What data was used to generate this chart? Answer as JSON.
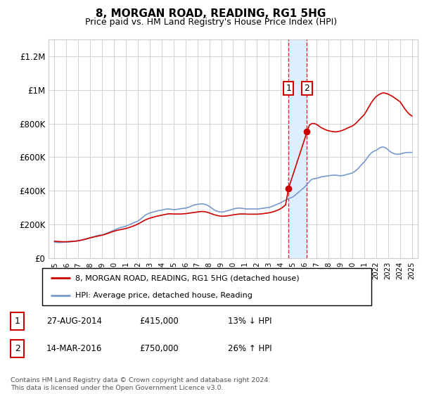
{
  "title": "8, MORGAN ROAD, READING, RG1 5HG",
  "subtitle": "Price paid vs. HM Land Registry's House Price Index (HPI)",
  "legend_line1": "8, MORGAN ROAD, READING, RG1 5HG (detached house)",
  "legend_line2": "HPI: Average price, detached house, Reading",
  "footer": "Contains HM Land Registry data © Crown copyright and database right 2024.\nThis data is licensed under the Open Government Licence v3.0.",
  "purchase1_date": "27-AUG-2014",
  "purchase1_price": 415000,
  "purchase1_label": "13% ↓ HPI",
  "purchase2_date": "14-MAR-2016",
  "purchase2_price": 750000,
  "purchase2_label": "26% ↑ HPI",
  "purchase1_year": 2014.65,
  "purchase2_year": 2016.2,
  "red_color": "#cc0000",
  "blue_color": "#7799cc",
  "shade_color": "#ddeeff",
  "grid_color": "#cccccc",
  "ylim": [
    0,
    1300000
  ],
  "yticks": [
    0,
    200000,
    400000,
    600000,
    800000,
    1000000,
    1200000
  ],
  "ytick_labels": [
    "£0",
    "£200K",
    "£400K",
    "£600K",
    "£800K",
    "£1M",
    "£1.2M"
  ],
  "hpi_data": [
    [
      1995.0,
      95000
    ],
    [
      1995.1,
      94000
    ],
    [
      1995.2,
      93500
    ],
    [
      1995.3,
      93000
    ],
    [
      1995.4,
      92500
    ],
    [
      1995.5,
      92800
    ],
    [
      1995.6,
      93000
    ],
    [
      1995.7,
      93500
    ],
    [
      1995.8,
      94000
    ],
    [
      1995.9,
      94500
    ],
    [
      1996.0,
      94800
    ],
    [
      1996.1,
      95000
    ],
    [
      1996.2,
      95500
    ],
    [
      1996.3,
      96000
    ],
    [
      1996.4,
      97000
    ],
    [
      1996.5,
      98000
    ],
    [
      1996.6,
      99000
    ],
    [
      1996.7,
      100000
    ],
    [
      1996.8,
      101000
    ],
    [
      1996.9,
      102000
    ],
    [
      1997.0,
      103000
    ],
    [
      1997.1,
      104000
    ],
    [
      1997.2,
      105000
    ],
    [
      1997.3,
      107000
    ],
    [
      1997.4,
      109000
    ],
    [
      1997.5,
      111000
    ],
    [
      1997.6,
      113000
    ],
    [
      1997.7,
      115000
    ],
    [
      1997.8,
      117000
    ],
    [
      1997.9,
      119000
    ],
    [
      1998.0,
      121000
    ],
    [
      1998.1,
      123000
    ],
    [
      1998.2,
      125000
    ],
    [
      1998.3,
      127000
    ],
    [
      1998.4,
      129000
    ],
    [
      1998.5,
      131000
    ],
    [
      1998.6,
      133000
    ],
    [
      1998.7,
      135000
    ],
    [
      1998.8,
      136000
    ],
    [
      1998.9,
      137000
    ],
    [
      1999.0,
      138000
    ],
    [
      1999.1,
      140000
    ],
    [
      1999.2,
      142000
    ],
    [
      1999.3,
      145000
    ],
    [
      1999.4,
      148000
    ],
    [
      1999.5,
      151000
    ],
    [
      1999.6,
      154000
    ],
    [
      1999.7,
      157000
    ],
    [
      1999.8,
      160000
    ],
    [
      1999.9,
      163000
    ],
    [
      2000.0,
      166000
    ],
    [
      2000.1,
      169000
    ],
    [
      2000.2,
      172000
    ],
    [
      2000.3,
      175000
    ],
    [
      2000.4,
      178000
    ],
    [
      2000.5,
      180000
    ],
    [
      2000.6,
      182000
    ],
    [
      2000.7,
      184000
    ],
    [
      2000.8,
      186000
    ],
    [
      2000.9,
      188000
    ],
    [
      2001.0,
      190000
    ],
    [
      2001.1,
      193000
    ],
    [
      2001.2,
      196000
    ],
    [
      2001.3,
      199000
    ],
    [
      2001.4,
      202000
    ],
    [
      2001.5,
      205000
    ],
    [
      2001.6,
      208000
    ],
    [
      2001.7,
      211000
    ],
    [
      2001.8,
      214000
    ],
    [
      2001.9,
      217000
    ],
    [
      2002.0,
      220000
    ],
    [
      2002.1,
      225000
    ],
    [
      2002.2,
      230000
    ],
    [
      2002.3,
      236000
    ],
    [
      2002.4,
      242000
    ],
    [
      2002.5,
      248000
    ],
    [
      2002.6,
      254000
    ],
    [
      2002.7,
      258000
    ],
    [
      2002.8,
      262000
    ],
    [
      2002.9,
      265000
    ],
    [
      2003.0,
      268000
    ],
    [
      2003.1,
      270000
    ],
    [
      2003.2,
      272000
    ],
    [
      2003.3,
      274000
    ],
    [
      2003.4,
      276000
    ],
    [
      2003.5,
      278000
    ],
    [
      2003.6,
      280000
    ],
    [
      2003.7,
      282000
    ],
    [
      2003.8,
      283000
    ],
    [
      2003.9,
      284000
    ],
    [
      2004.0,
      285000
    ],
    [
      2004.1,
      287000
    ],
    [
      2004.2,
      289000
    ],
    [
      2004.3,
      290000
    ],
    [
      2004.4,
      291000
    ],
    [
      2004.5,
      292000
    ],
    [
      2004.6,
      292000
    ],
    [
      2004.7,
      291000
    ],
    [
      2004.8,
      290000
    ],
    [
      2004.9,
      289000
    ],
    [
      2005.0,
      288000
    ],
    [
      2005.1,
      288000
    ],
    [
      2005.2,
      289000
    ],
    [
      2005.3,
      290000
    ],
    [
      2005.4,
      291000
    ],
    [
      2005.5,
      292000
    ],
    [
      2005.6,
      293000
    ],
    [
      2005.7,
      294000
    ],
    [
      2005.8,
      295000
    ],
    [
      2005.9,
      296000
    ],
    [
      2006.0,
      297000
    ],
    [
      2006.1,
      299000
    ],
    [
      2006.2,
      301000
    ],
    [
      2006.3,
      303000
    ],
    [
      2006.4,
      306000
    ],
    [
      2006.5,
      309000
    ],
    [
      2006.6,
      312000
    ],
    [
      2006.7,
      315000
    ],
    [
      2006.8,
      317000
    ],
    [
      2006.9,
      318000
    ],
    [
      2007.0,
      319000
    ],
    [
      2007.1,
      320000
    ],
    [
      2007.2,
      321000
    ],
    [
      2007.3,
      322000
    ],
    [
      2007.4,
      322000
    ],
    [
      2007.5,
      321000
    ],
    [
      2007.6,
      320000
    ],
    [
      2007.7,
      318000
    ],
    [
      2007.8,
      315000
    ],
    [
      2007.9,
      311000
    ],
    [
      2008.0,
      307000
    ],
    [
      2008.1,
      302000
    ],
    [
      2008.2,
      297000
    ],
    [
      2008.3,
      292000
    ],
    [
      2008.4,
      287000
    ],
    [
      2008.5,
      283000
    ],
    [
      2008.6,
      280000
    ],
    [
      2008.7,
      278000
    ],
    [
      2008.8,
      276000
    ],
    [
      2008.9,
      275000
    ],
    [
      2009.0,
      274000
    ],
    [
      2009.1,
      274000
    ],
    [
      2009.2,
      275000
    ],
    [
      2009.3,
      277000
    ],
    [
      2009.4,
      279000
    ],
    [
      2009.5,
      281000
    ],
    [
      2009.6,
      283000
    ],
    [
      2009.7,
      285000
    ],
    [
      2009.8,
      287000
    ],
    [
      2009.9,
      289000
    ],
    [
      2010.0,
      291000
    ],
    [
      2010.1,
      293000
    ],
    [
      2010.2,
      295000
    ],
    [
      2010.3,
      296000
    ],
    [
      2010.4,
      297000
    ],
    [
      2010.5,
      297000
    ],
    [
      2010.6,
      297000
    ],
    [
      2010.7,
      296000
    ],
    [
      2010.8,
      295000
    ],
    [
      2010.9,
      294000
    ],
    [
      2011.0,
      293000
    ],
    [
      2011.1,
      292000
    ],
    [
      2011.2,
      292000
    ],
    [
      2011.3,
      292000
    ],
    [
      2011.4,
      292000
    ],
    [
      2011.5,
      292000
    ],
    [
      2011.6,
      292000
    ],
    [
      2011.7,
      292000
    ],
    [
      2011.8,
      292000
    ],
    [
      2011.9,
      292000
    ],
    [
      2012.0,
      292000
    ],
    [
      2012.1,
      292000
    ],
    [
      2012.2,
      293000
    ],
    [
      2012.3,
      294000
    ],
    [
      2012.4,
      295000
    ],
    [
      2012.5,
      296000
    ],
    [
      2012.6,
      297000
    ],
    [
      2012.7,
      298000
    ],
    [
      2012.8,
      299000
    ],
    [
      2012.9,
      300000
    ],
    [
      2013.0,
      301000
    ],
    [
      2013.1,
      303000
    ],
    [
      2013.2,
      305000
    ],
    [
      2013.3,
      308000
    ],
    [
      2013.4,
      311000
    ],
    [
      2013.5,
      314000
    ],
    [
      2013.6,
      317000
    ],
    [
      2013.7,
      320000
    ],
    [
      2013.8,
      323000
    ],
    [
      2013.9,
      326000
    ],
    [
      2014.0,
      329000
    ],
    [
      2014.1,
      333000
    ],
    [
      2014.2,
      337000
    ],
    [
      2014.3,
      341000
    ],
    [
      2014.4,
      345000
    ],
    [
      2014.5,
      348000
    ],
    [
      2014.6,
      351000
    ],
    [
      2014.65,
      353000
    ],
    [
      2014.7,
      355000
    ],
    [
      2014.8,
      358000
    ],
    [
      2014.9,
      360000
    ],
    [
      2015.0,
      363000
    ],
    [
      2015.1,
      368000
    ],
    [
      2015.2,
      374000
    ],
    [
      2015.3,
      380000
    ],
    [
      2015.4,
      386000
    ],
    [
      2015.5,
      392000
    ],
    [
      2015.6,
      398000
    ],
    [
      2015.7,
      404000
    ],
    [
      2015.8,
      410000
    ],
    [
      2015.9,
      416000
    ],
    [
      2016.0,
      422000
    ],
    [
      2016.1,
      430000
    ],
    [
      2016.2,
      438000
    ],
    [
      2016.3,
      446000
    ],
    [
      2016.4,
      454000
    ],
    [
      2016.5,
      462000
    ],
    [
      2016.6,
      468000
    ],
    [
      2016.7,
      470000
    ],
    [
      2016.8,
      472000
    ],
    [
      2016.9,
      473000
    ],
    [
      2017.0,
      474000
    ],
    [
      2017.1,
      476000
    ],
    [
      2017.2,
      478000
    ],
    [
      2017.3,
      480000
    ],
    [
      2017.4,
      482000
    ],
    [
      2017.5,
      484000
    ],
    [
      2017.6,
      485000
    ],
    [
      2017.7,
      486000
    ],
    [
      2017.8,
      487000
    ],
    [
      2017.9,
      488000
    ],
    [
      2018.0,
      489000
    ],
    [
      2018.1,
      490000
    ],
    [
      2018.2,
      491000
    ],
    [
      2018.3,
      492000
    ],
    [
      2018.4,
      493000
    ],
    [
      2018.5,
      493000
    ],
    [
      2018.6,
      493000
    ],
    [
      2018.7,
      492000
    ],
    [
      2018.8,
      491000
    ],
    [
      2018.9,
      490000
    ],
    [
      2019.0,
      489000
    ],
    [
      2019.1,
      490000
    ],
    [
      2019.2,
      491000
    ],
    [
      2019.3,
      492000
    ],
    [
      2019.4,
      494000
    ],
    [
      2019.5,
      496000
    ],
    [
      2019.6,
      498000
    ],
    [
      2019.7,
      500000
    ],
    [
      2019.8,
      502000
    ],
    [
      2019.9,
      504000
    ],
    [
      2020.0,
      506000
    ],
    [
      2020.1,
      510000
    ],
    [
      2020.2,
      515000
    ],
    [
      2020.3,
      520000
    ],
    [
      2020.4,
      526000
    ],
    [
      2020.5,
      533000
    ],
    [
      2020.6,
      541000
    ],
    [
      2020.7,
      549000
    ],
    [
      2020.8,
      557000
    ],
    [
      2020.9,
      564000
    ],
    [
      2021.0,
      571000
    ],
    [
      2021.1,
      580000
    ],
    [
      2021.2,
      590000
    ],
    [
      2021.3,
      600000
    ],
    [
      2021.4,
      610000
    ],
    [
      2021.5,
      618000
    ],
    [
      2021.6,
      625000
    ],
    [
      2021.7,
      630000
    ],
    [
      2021.8,
      635000
    ],
    [
      2021.9,
      638000
    ],
    [
      2022.0,
      640000
    ],
    [
      2022.1,
      645000
    ],
    [
      2022.2,
      650000
    ],
    [
      2022.3,
      655000
    ],
    [
      2022.4,
      658000
    ],
    [
      2022.5,
      660000
    ],
    [
      2022.6,
      660000
    ],
    [
      2022.7,
      658000
    ],
    [
      2022.8,
      655000
    ],
    [
      2022.9,
      650000
    ],
    [
      2023.0,
      644000
    ],
    [
      2023.1,
      638000
    ],
    [
      2023.2,
      632000
    ],
    [
      2023.3,
      628000
    ],
    [
      2023.4,
      624000
    ],
    [
      2023.5,
      621000
    ],
    [
      2023.6,
      619000
    ],
    [
      2023.7,
      618000
    ],
    [
      2023.8,
      617000
    ],
    [
      2023.9,
      617000
    ],
    [
      2024.0,
      618000
    ],
    [
      2024.1,
      620000
    ],
    [
      2024.2,
      622000
    ],
    [
      2024.3,
      624000
    ],
    [
      2024.4,
      626000
    ],
    [
      2024.5,
      627000
    ],
    [
      2024.6,
      628000
    ],
    [
      2024.7,
      628000
    ],
    [
      2024.8,
      628000
    ],
    [
      2024.9,
      628000
    ],
    [
      2025.0,
      628000
    ]
  ],
  "red_data": [
    [
      1995.0,
      100000
    ],
    [
      1995.2,
      99000
    ],
    [
      1995.4,
      98000
    ],
    [
      1995.6,
      97500
    ],
    [
      1995.8,
      97000
    ],
    [
      1996.0,
      97500
    ],
    [
      1996.2,
      98000
    ],
    [
      1996.4,
      99000
    ],
    [
      1996.6,
      100000
    ],
    [
      1996.8,
      101000
    ],
    [
      1997.0,
      103000
    ],
    [
      1997.2,
      106000
    ],
    [
      1997.4,
      109000
    ],
    [
      1997.6,
      112000
    ],
    [
      1997.8,
      116000
    ],
    [
      1998.0,
      120000
    ],
    [
      1998.2,
      124000
    ],
    [
      1998.4,
      127000
    ],
    [
      1998.6,
      130000
    ],
    [
      1998.8,
      133000
    ],
    [
      1999.0,
      136000
    ],
    [
      1999.2,
      140000
    ],
    [
      1999.4,
      145000
    ],
    [
      1999.6,
      150000
    ],
    [
      1999.8,
      155000
    ],
    [
      2000.0,
      160000
    ],
    [
      2000.2,
      164000
    ],
    [
      2000.4,
      167000
    ],
    [
      2000.6,
      170000
    ],
    [
      2000.8,
      173000
    ],
    [
      2001.0,
      176000
    ],
    [
      2001.2,
      180000
    ],
    [
      2001.4,
      185000
    ],
    [
      2001.6,
      190000
    ],
    [
      2001.8,
      196000
    ],
    [
      2002.0,
      202000
    ],
    [
      2002.2,
      210000
    ],
    [
      2002.4,
      218000
    ],
    [
      2002.6,
      226000
    ],
    [
      2002.8,
      232000
    ],
    [
      2003.0,
      237000
    ],
    [
      2003.2,
      241000
    ],
    [
      2003.4,
      245000
    ],
    [
      2003.6,
      249000
    ],
    [
      2003.8,
      252000
    ],
    [
      2004.0,
      255000
    ],
    [
      2004.2,
      258000
    ],
    [
      2004.4,
      261000
    ],
    [
      2004.6,
      263000
    ],
    [
      2004.8,
      263000
    ],
    [
      2005.0,
      262000
    ],
    [
      2005.2,
      262000
    ],
    [
      2005.4,
      262000
    ],
    [
      2005.6,
      262000
    ],
    [
      2005.8,
      263000
    ],
    [
      2006.0,
      264000
    ],
    [
      2006.2,
      266000
    ],
    [
      2006.4,
      268000
    ],
    [
      2006.6,
      270000
    ],
    [
      2006.8,
      272000
    ],
    [
      2007.0,
      274000
    ],
    [
      2007.2,
      276000
    ],
    [
      2007.4,
      277000
    ],
    [
      2007.6,
      276000
    ],
    [
      2007.8,
      273000
    ],
    [
      2008.0,
      268000
    ],
    [
      2008.2,
      263000
    ],
    [
      2008.4,
      258000
    ],
    [
      2008.6,
      254000
    ],
    [
      2008.8,
      251000
    ],
    [
      2009.0,
      249000
    ],
    [
      2009.2,
      249000
    ],
    [
      2009.4,
      250000
    ],
    [
      2009.6,
      252000
    ],
    [
      2009.8,
      254000
    ],
    [
      2010.0,
      257000
    ],
    [
      2010.2,
      259000
    ],
    [
      2010.4,
      261000
    ],
    [
      2010.6,
      262000
    ],
    [
      2010.8,
      262000
    ],
    [
      2011.0,
      262000
    ],
    [
      2011.2,
      261000
    ],
    [
      2011.4,
      261000
    ],
    [
      2011.6,
      261000
    ],
    [
      2011.8,
      261000
    ],
    [
      2012.0,
      261000
    ],
    [
      2012.2,
      262000
    ],
    [
      2012.4,
      263000
    ],
    [
      2012.6,
      265000
    ],
    [
      2012.8,
      267000
    ],
    [
      2013.0,
      269000
    ],
    [
      2013.2,
      272000
    ],
    [
      2013.4,
      276000
    ],
    [
      2013.6,
      281000
    ],
    [
      2013.8,
      287000
    ],
    [
      2014.0,
      294000
    ],
    [
      2014.2,
      304000
    ],
    [
      2014.4,
      316000
    ],
    [
      2014.65,
      415000
    ],
    [
      2016.2,
      750000
    ],
    [
      2016.4,
      790000
    ],
    [
      2016.6,
      800000
    ],
    [
      2016.8,
      800000
    ],
    [
      2017.0,
      795000
    ],
    [
      2017.2,
      785000
    ],
    [
      2017.4,
      775000
    ],
    [
      2017.6,
      768000
    ],
    [
      2017.8,
      762000
    ],
    [
      2018.0,
      757000
    ],
    [
      2018.2,
      754000
    ],
    [
      2018.4,
      752000
    ],
    [
      2018.6,
      750000
    ],
    [
      2018.8,
      752000
    ],
    [
      2019.0,
      755000
    ],
    [
      2019.2,
      760000
    ],
    [
      2019.4,
      766000
    ],
    [
      2019.6,
      773000
    ],
    [
      2019.8,
      779000
    ],
    [
      2020.0,
      785000
    ],
    [
      2020.2,
      795000
    ],
    [
      2020.4,
      808000
    ],
    [
      2020.6,
      823000
    ],
    [
      2020.8,
      838000
    ],
    [
      2021.0,
      852000
    ],
    [
      2021.2,
      875000
    ],
    [
      2021.4,
      900000
    ],
    [
      2021.6,
      924000
    ],
    [
      2021.8,
      944000
    ],
    [
      2022.0,
      960000
    ],
    [
      2022.2,
      970000
    ],
    [
      2022.4,
      978000
    ],
    [
      2022.6,
      982000
    ],
    [
      2022.8,
      980000
    ],
    [
      2023.0,
      975000
    ],
    [
      2023.2,
      968000
    ],
    [
      2023.4,
      960000
    ],
    [
      2023.6,
      950000
    ],
    [
      2023.8,
      940000
    ],
    [
      2024.0,
      930000
    ],
    [
      2024.2,
      910000
    ],
    [
      2024.4,
      888000
    ],
    [
      2024.6,
      870000
    ],
    [
      2024.8,
      855000
    ],
    [
      2025.0,
      845000
    ]
  ]
}
